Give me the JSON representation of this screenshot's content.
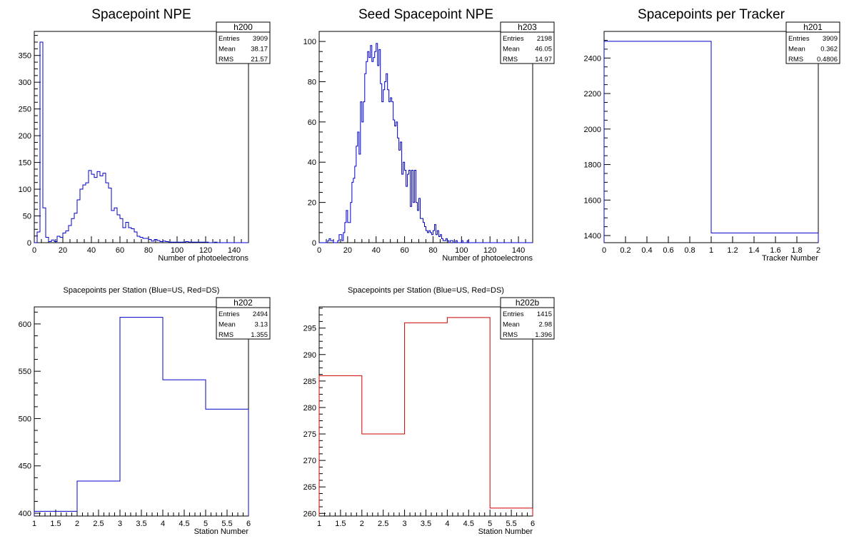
{
  "chart_data": [
    {
      "id": "h200",
      "type": "histogram",
      "title": "Spacepoint NPE",
      "xlabel": "Number of photoelectrons",
      "ylabel": "",
      "xlim": [
        0,
        150
      ],
      "ylim": [
        0,
        395
      ],
      "xticks": [
        0,
        20,
        40,
        60,
        80,
        100,
        120,
        140
      ],
      "yticks": [
        0,
        50,
        100,
        150,
        200,
        250,
        300,
        350
      ],
      "line_color": "#0000cc",
      "bin_width": 2,
      "values": [
        0,
        20,
        375,
        65,
        10,
        2,
        5,
        2,
        12,
        10,
        18,
        22,
        32,
        45,
        55,
        80,
        100,
        108,
        112,
        135,
        128,
        122,
        133,
        125,
        130,
        112,
        102,
        60,
        65,
        52,
        45,
        28,
        38,
        28,
        26,
        20,
        12,
        10,
        8,
        8,
        6,
        3,
        6,
        4,
        2,
        3,
        2,
        1,
        1,
        1,
        1,
        1,
        1,
        2,
        1,
        1,
        1,
        1,
        1,
        1,
        1,
        0,
        0,
        1,
        0,
        0,
        0,
        0,
        0,
        0,
        0,
        0,
        0,
        0,
        0
      ],
      "stats": {
        "name": "h200",
        "rows": [
          {
            "label": "Entries",
            "value": "3909"
          },
          {
            "label": "Mean",
            "value": "38.17"
          },
          {
            "label": "RMS",
            "value": "21.57"
          }
        ]
      }
    },
    {
      "id": "h203",
      "type": "histogram",
      "title": "Seed Spacepoint NPE",
      "xlabel": "Number of photoelectrons",
      "ylabel": "",
      "xlim": [
        0,
        150
      ],
      "ylim": [
        0,
        105
      ],
      "xticks": [
        0,
        20,
        40,
        60,
        80,
        100,
        120,
        140
      ],
      "yticks": [
        0,
        20,
        40,
        60,
        80,
        100
      ],
      "line_color": "#0000cc",
      "bin_width": 1,
      "values": [
        0,
        0,
        0,
        0,
        0,
        0,
        1,
        2,
        1,
        1,
        0,
        0,
        0,
        1,
        4,
        4,
        1,
        5,
        10,
        16,
        10,
        10,
        20,
        30,
        32,
        38,
        48,
        55,
        44,
        70,
        60,
        70,
        84,
        90,
        95,
        92,
        98,
        90,
        92,
        95,
        99,
        88,
        96,
        79,
        70,
        76,
        80,
        84,
        76,
        70,
        72,
        70,
        61,
        58,
        60,
        52,
        46,
        50,
        34,
        40,
        36,
        28,
        34,
        36,
        18,
        36,
        20,
        36,
        20,
        16,
        22,
        12,
        12,
        10,
        8,
        6,
        5,
        6,
        5,
        4,
        6,
        9,
        4,
        6,
        3,
        4,
        2,
        1,
        1,
        2,
        1,
        0,
        1,
        1,
        0,
        0,
        1,
        0,
        0,
        0,
        1,
        0,
        0,
        0,
        1,
        0,
        0,
        0,
        0,
        0,
        0,
        0,
        0,
        0,
        0,
        0,
        0,
        0,
        0,
        0,
        0,
        0,
        0,
        0,
        0,
        0,
        0,
        0,
        0,
        0,
        0,
        0,
        0,
        0,
        0,
        0,
        0,
        0,
        0,
        0,
        0,
        0,
        0,
        0,
        0,
        0,
        0,
        0,
        0,
        0
      ],
      "stats": {
        "name": "h203",
        "rows": [
          {
            "label": "Entries",
            "value": "2198"
          },
          {
            "label": "Mean",
            "value": "46.05"
          },
          {
            "label": "RMS",
            "value": "14.97"
          }
        ]
      }
    },
    {
      "id": "h201",
      "type": "histogram",
      "title": "Spacepoints per Tracker",
      "xlabel": "Tracker Number",
      "ylabel": "",
      "xlim": [
        0,
        2
      ],
      "ylim": [
        1360,
        2550
      ],
      "xticks": [
        0,
        0.2,
        0.4,
        0.6,
        0.8,
        1,
        1.2,
        1.4,
        1.6,
        1.8,
        2
      ],
      "yticks": [
        1400,
        1600,
        1800,
        2000,
        2200,
        2400
      ],
      "line_color": "#0000cc",
      "bin_edges": [
        0,
        1,
        2
      ],
      "values": [
        2494,
        1415
      ],
      "stats": {
        "name": "h201",
        "rows": [
          {
            "label": "Entries",
            "value": "3909"
          },
          {
            "label": "Mean",
            "value": "0.362"
          },
          {
            "label": "RMS",
            "value": "0.4806"
          }
        ]
      }
    },
    {
      "id": "h202",
      "type": "histogram",
      "title": "Spacepoints per Station (Blue=US, Red=DS)",
      "xlabel": "Station Number",
      "ylabel": "",
      "xlim": [
        1,
        6
      ],
      "ylim": [
        397,
        618
      ],
      "xticks": [
        1,
        1.5,
        2,
        2.5,
        3,
        3.5,
        4,
        4.5,
        5,
        5.5,
        6
      ],
      "yticks": [
        400,
        450,
        500,
        550,
        600
      ],
      "line_color": "#0000cc",
      "bin_edges": [
        1,
        2,
        3,
        4,
        5,
        6
      ],
      "values": [
        402,
        434,
        607,
        541,
        510
      ],
      "stats": {
        "name": "h202",
        "rows": [
          {
            "label": "Entries",
            "value": "2494"
          },
          {
            "label": "Mean",
            "value": "3.13"
          },
          {
            "label": "RMS",
            "value": "1.355"
          }
        ]
      }
    },
    {
      "id": "h202b",
      "type": "histogram",
      "title": "Spacepoints per Station (Blue=US, Red=DS)",
      "xlabel": "Station Number",
      "ylabel": "",
      "xlim": [
        1,
        6
      ],
      "ylim": [
        259.5,
        299
      ],
      "xticks": [
        1,
        1.5,
        2,
        2.5,
        3,
        3.5,
        4,
        4.5,
        5,
        5.5,
        6
      ],
      "yticks": [
        260,
        265,
        270,
        275,
        280,
        285,
        290,
        295
      ],
      "line_color": "#cc0000",
      "bin_edges": [
        1,
        2,
        3,
        4,
        5,
        6
      ],
      "values": [
        286,
        275,
        296,
        297,
        261
      ],
      "stats": {
        "name": "h202b",
        "rows": [
          {
            "label": "Entries",
            "value": "1415"
          },
          {
            "label": "Mean",
            "value": "2.98"
          },
          {
            "label": "RMS",
            "value": "1.396"
          }
        ]
      }
    }
  ]
}
